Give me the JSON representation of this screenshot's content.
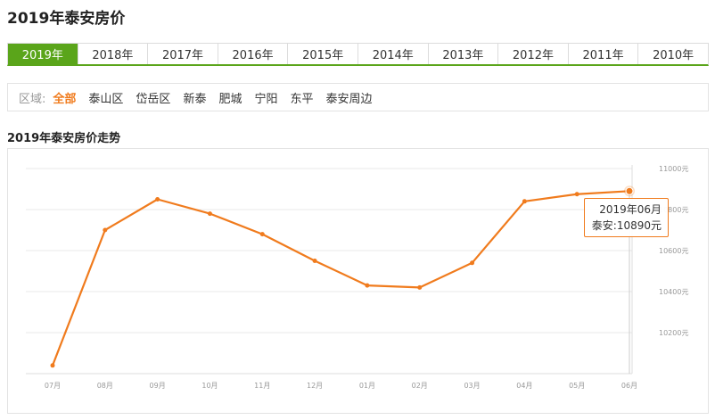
{
  "page": {
    "title": "2019年泰安房价"
  },
  "year_tabs": [
    {
      "label": "2019年",
      "active": true
    },
    {
      "label": "2018年",
      "active": false
    },
    {
      "label": "2017年",
      "active": false
    },
    {
      "label": "2016年",
      "active": false
    },
    {
      "label": "2015年",
      "active": false
    },
    {
      "label": "2014年",
      "active": false
    },
    {
      "label": "2013年",
      "active": false
    },
    {
      "label": "2012年",
      "active": false
    },
    {
      "label": "2011年",
      "active": false
    },
    {
      "label": "2010年",
      "active": false
    }
  ],
  "region": {
    "label": "区域:",
    "items": [
      {
        "label": "全部",
        "active": true
      },
      {
        "label": "泰山区",
        "active": false
      },
      {
        "label": "岱岳区",
        "active": false
      },
      {
        "label": "新泰",
        "active": false
      },
      {
        "label": "肥城",
        "active": false
      },
      {
        "label": "宁阳",
        "active": false
      },
      {
        "label": "东平",
        "active": false
      },
      {
        "label": "泰安周边",
        "active": false
      }
    ]
  },
  "chart_title": "2019年泰安房价走势",
  "tooltip": {
    "date": "2019年06月",
    "value_text": "泰安:10890元"
  },
  "colors": {
    "accent": "#5aa51a",
    "line": "#f07b1d",
    "grid": "#e8e8e8"
  },
  "chart_data": {
    "type": "line",
    "categories": [
      "07月",
      "08月",
      "09月",
      "10月",
      "11月",
      "12月",
      "01月",
      "02月",
      "03月",
      "04月",
      "05月",
      "06月"
    ],
    "series": [
      {
        "values": [
          10040,
          10700,
          10850,
          10780,
          10680,
          10550,
          10430,
          10420,
          10540,
          10840,
          10875,
          10890
        ]
      }
    ],
    "y_ticks": [
      "11000元",
      "10800元",
      "10600元",
      "10400元",
      "10200元"
    ],
    "y_tick_values": [
      11000,
      10800,
      10600,
      10400,
      10200
    ],
    "ylim": [
      10000,
      11000
    ],
    "grid": true,
    "highlight_index": 11
  }
}
